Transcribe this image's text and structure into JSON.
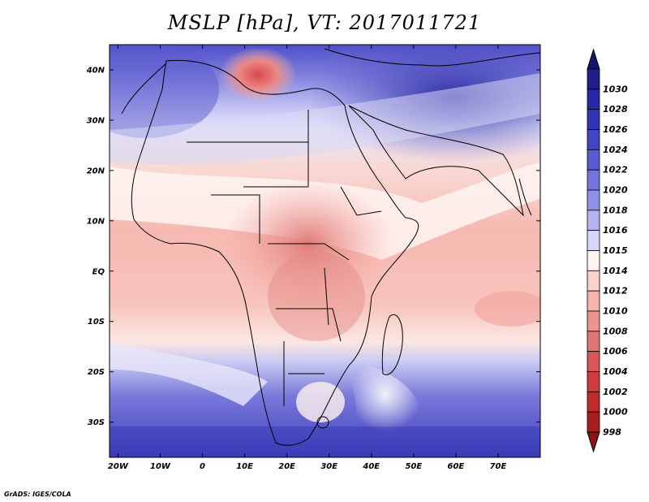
{
  "title": "MSLP [hPa], VT: 2017011721",
  "credit": "GrADS: IGES/COLA",
  "map": {
    "variable": "Mean sea level pressure",
    "units": "hPa",
    "lon_range": [
      -22,
      80
    ],
    "lat_range": [
      -37,
      45
    ],
    "lat_ticks": [
      {
        "value": 40,
        "label": "40N"
      },
      {
        "value": 30,
        "label": "30N"
      },
      {
        "value": 20,
        "label": "20N"
      },
      {
        "value": 10,
        "label": "10N"
      },
      {
        "value": 0,
        "label": "EQ"
      },
      {
        "value": -10,
        "label": "10S"
      },
      {
        "value": -20,
        "label": "20S"
      },
      {
        "value": -30,
        "label": "30S"
      }
    ],
    "lon_ticks": [
      {
        "value": -20,
        "label": "20W"
      },
      {
        "value": -10,
        "label": "10W"
      },
      {
        "value": 0,
        "label": "0"
      },
      {
        "value": 10,
        "label": "10E"
      },
      {
        "value": 20,
        "label": "20E"
      },
      {
        "value": 30,
        "label": "30E"
      },
      {
        "value": 40,
        "label": "40E"
      },
      {
        "value": 50,
        "label": "50E"
      },
      {
        "value": 60,
        "label": "60E"
      },
      {
        "value": 70,
        "label": "70E"
      }
    ]
  },
  "colorbar": {
    "levels": [
      {
        "label": "1030",
        "color": "#1e1e8c"
      },
      {
        "label": "1028",
        "color": "#2828a6"
      },
      {
        "label": "1026",
        "color": "#3434b8"
      },
      {
        "label": "1024",
        "color": "#4444c6"
      },
      {
        "label": "1022",
        "color": "#5a5ad2"
      },
      {
        "label": "1020",
        "color": "#7474dc"
      },
      {
        "label": "1018",
        "color": "#9090e6"
      },
      {
        "label": "1016",
        "color": "#b4b4f0"
      },
      {
        "label": "1015",
        "color": "#d6d6f8"
      },
      {
        "label": "1014",
        "color": "#fff3f0"
      },
      {
        "label": "1012",
        "color": "#fcd2cc"
      },
      {
        "label": "1010",
        "color": "#f7b3ad"
      },
      {
        "label": "1008",
        "color": "#ec9490"
      },
      {
        "label": "1006",
        "color": "#e07674"
      },
      {
        "label": "1004",
        "color": "#d85656"
      },
      {
        "label": "1002",
        "color": "#d03c3c"
      },
      {
        "label": "1000",
        "color": "#c22a2a"
      },
      {
        "label": "998",
        "color": "#a81e1e"
      }
    ],
    "top_arrow_color": "#14146e",
    "bottom_arrow_color": "#8c1414"
  }
}
